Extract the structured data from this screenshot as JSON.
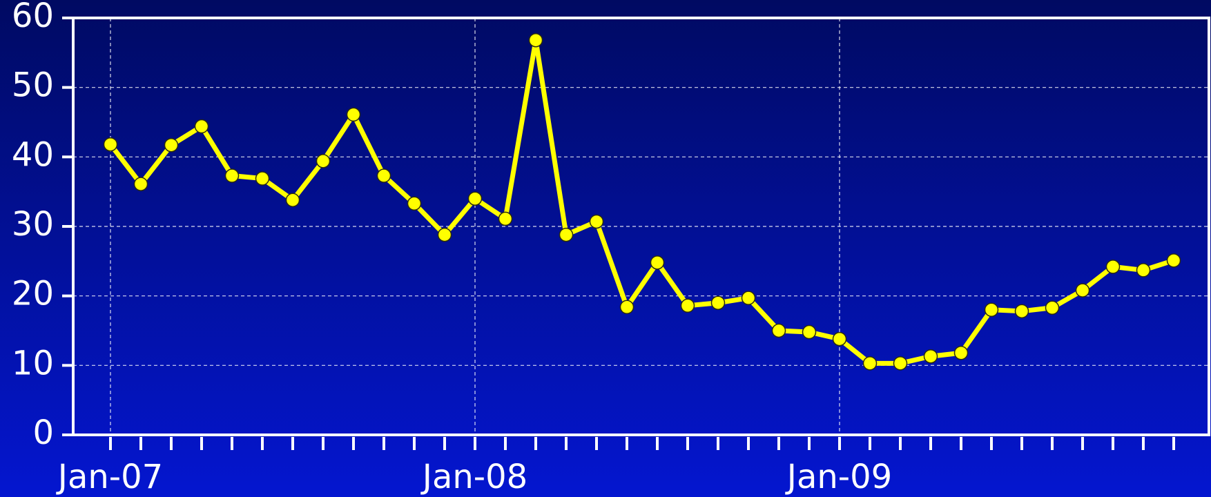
{
  "chart_data": {
    "type": "line",
    "categories": [
      "Jan-07",
      null,
      null,
      null,
      null,
      null,
      null,
      null,
      null,
      null,
      null,
      null,
      "Jan-08",
      null,
      null,
      null,
      null,
      null,
      null,
      null,
      null,
      null,
      null,
      null,
      "Jan-09",
      null,
      null,
      null,
      null,
      null,
      null,
      null,
      null,
      null,
      null,
      null
    ],
    "values": [
      41.8,
      36.1,
      41.7,
      44.4,
      37.3,
      36.9,
      33.8,
      39.4,
      46.1,
      37.3,
      33.3,
      28.8,
      34.0,
      31.1,
      56.8,
      28.8,
      30.7,
      18.4,
      24.8,
      18.6,
      19.0,
      19.7,
      15.0,
      14.8,
      13.8,
      10.3,
      10.3,
      11.3,
      11.8,
      18.0,
      17.8,
      18.3,
      20.8,
      24.2,
      23.7,
      25.1
    ],
    "color": "#ffff00",
    "ylim": [
      0,
      60
    ],
    "yticks": [
      0,
      10,
      20,
      30,
      40,
      50,
      60
    ],
    "grid": true
  }
}
